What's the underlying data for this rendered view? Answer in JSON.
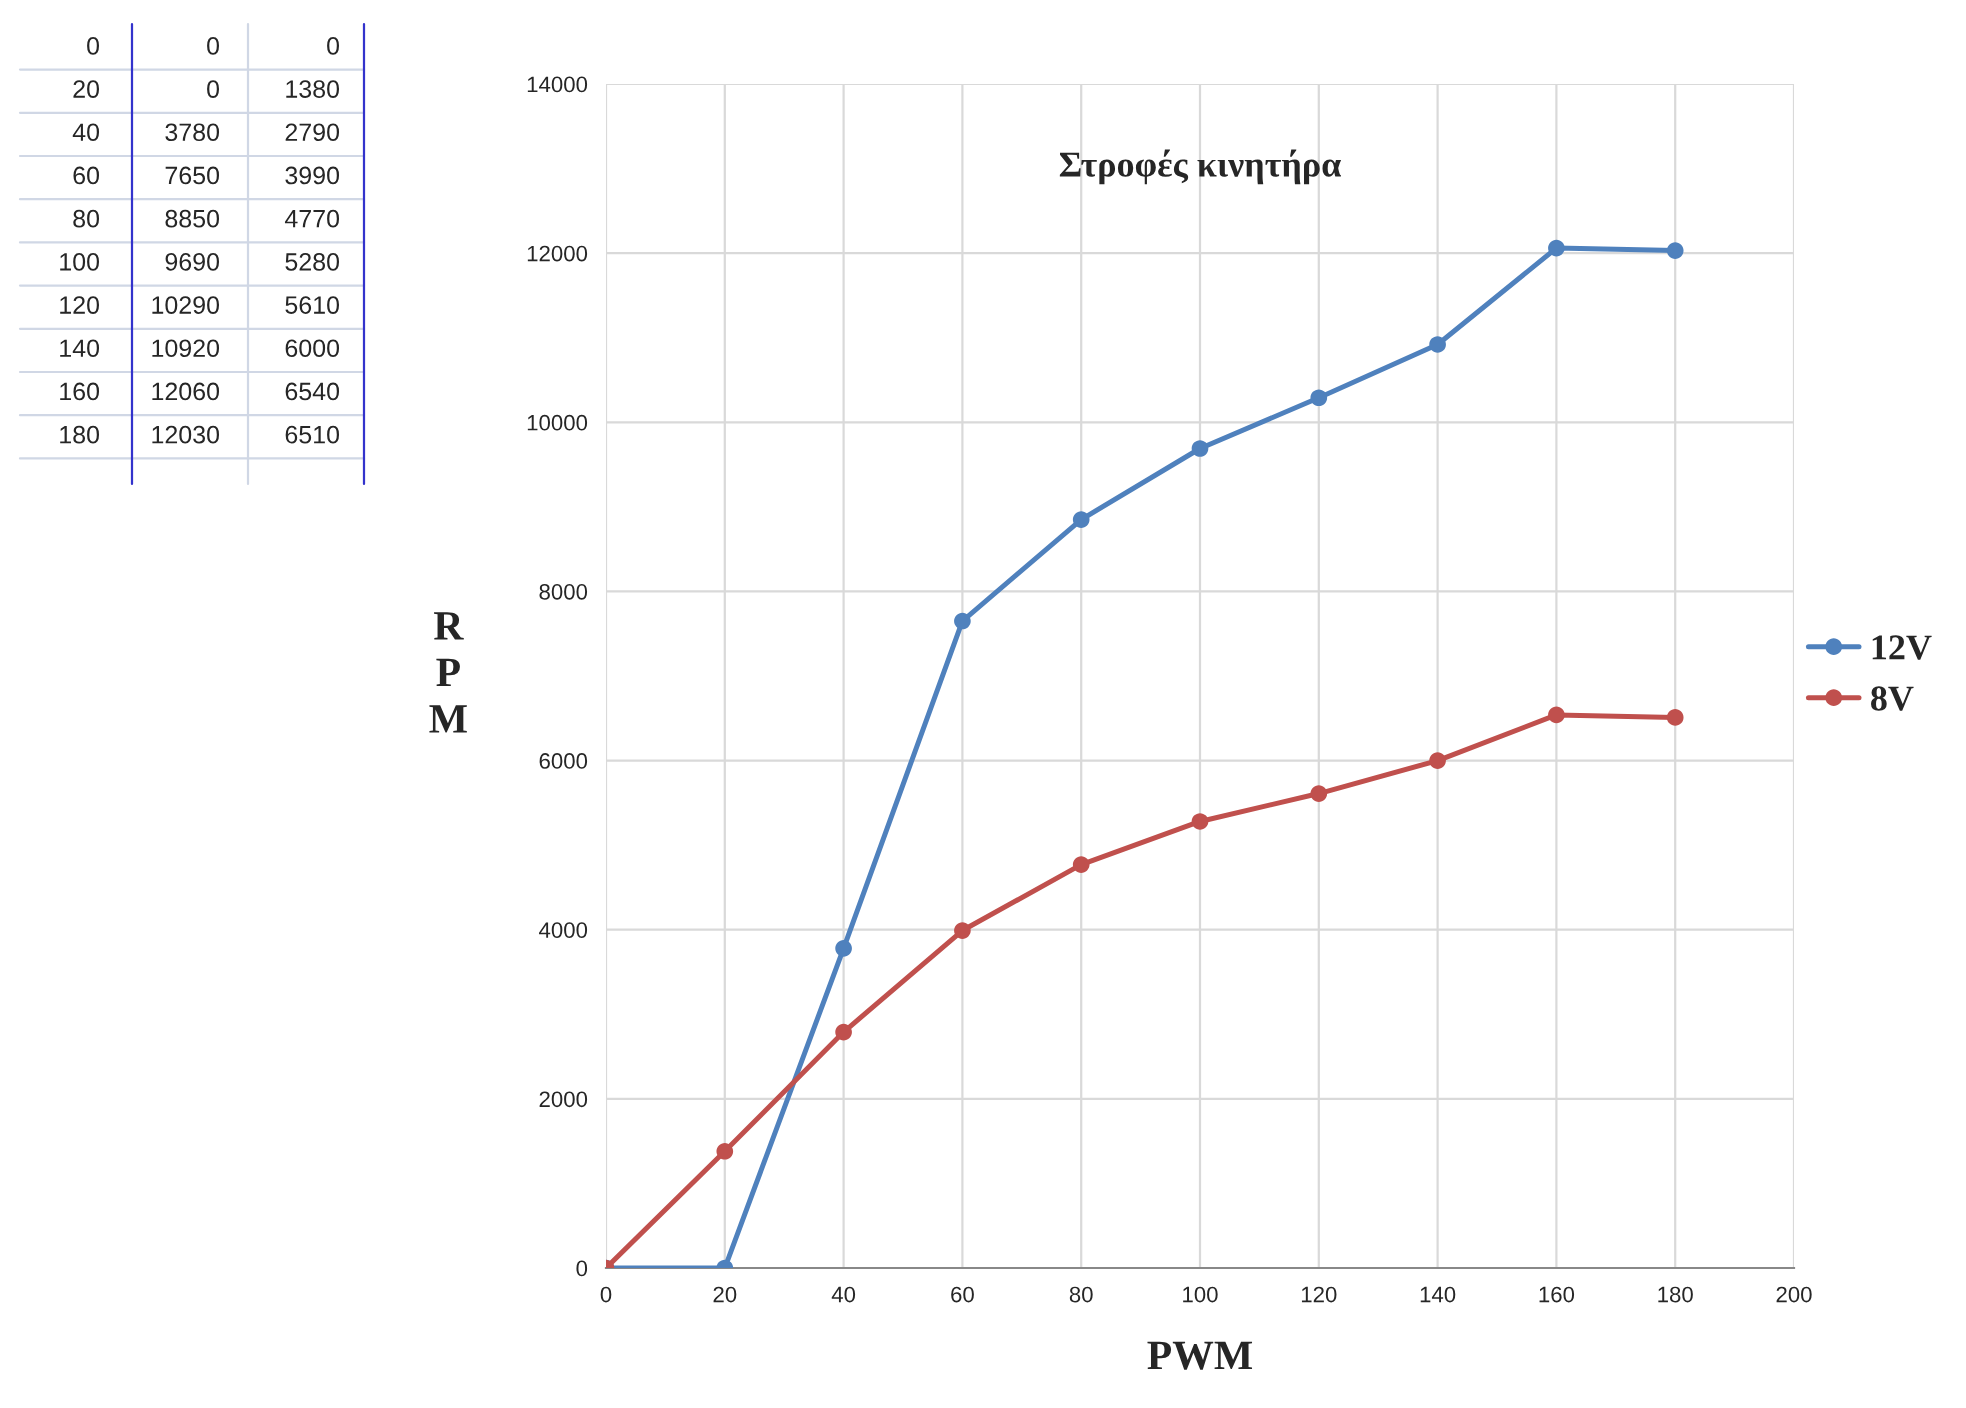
{
  "chart_data": {
    "type": "line",
    "title": "Στροφές κινητήρα",
    "xlabel": "PWM",
    "ylabel": "RPM",
    "x": [
      0,
      20,
      40,
      60,
      80,
      100,
      120,
      140,
      160,
      180
    ],
    "series": [
      {
        "name": "12V",
        "color": "#4f81bd",
        "values": [
          0,
          0,
          3780,
          7650,
          8850,
          9690,
          10290,
          10920,
          12060,
          12030
        ]
      },
      {
        "name": "8V",
        "color": "#c0504d",
        "values": [
          0,
          1380,
          2790,
          3990,
          4770,
          5280,
          5610,
          6000,
          6540,
          6510
        ]
      }
    ],
    "xlim": [
      0,
      200
    ],
    "xticks": [
      0,
      20,
      40,
      60,
      80,
      100,
      120,
      140,
      160,
      180,
      200
    ],
    "ylim": [
      0,
      14000
    ],
    "yticks": [
      0,
      2000,
      4000,
      6000,
      8000,
      10000,
      12000,
      14000
    ],
    "grid": true,
    "legend": "right",
    "marker": "circle",
    "line_style": "solid",
    "annotations": [
      "0",
      "0",
      "0",
      "20",
      "0",
      "1380",
      "40",
      "3780",
      "2790",
      "60",
      "7650",
      "3990",
      "80",
      "8850",
      "4770",
      "100",
      "9690",
      "5280",
      "120",
      "10290",
      "5610",
      "140",
      "10920",
      "6000",
      "160",
      "12060",
      "6540",
      "180",
      "12030",
      "6510"
    ]
  }
}
